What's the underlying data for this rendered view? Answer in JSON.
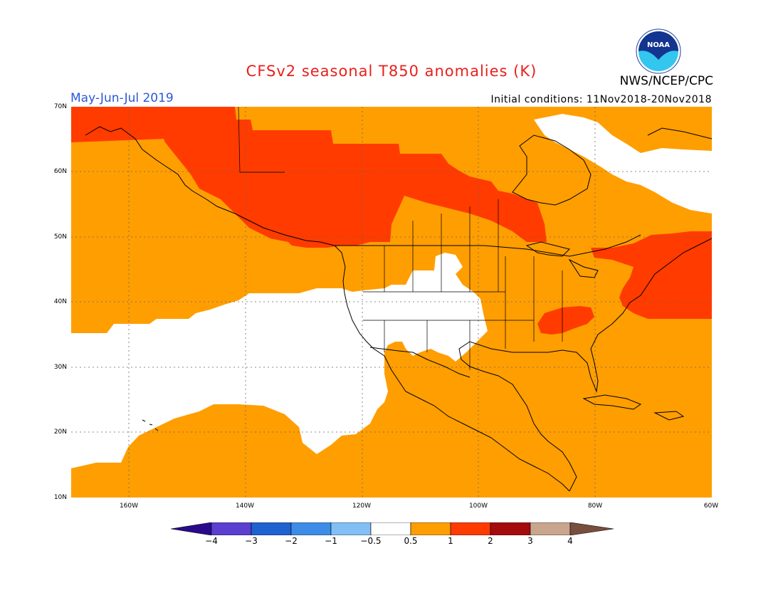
{
  "header": {
    "title": "CFSv2 seasonal T850 anomalies (K)",
    "agency": "NWS/NCEP/CPC",
    "period": "May-Jun-Jul 2019",
    "initial_conditions": "Initial conditions: 11Nov2018-20Nov2018",
    "logo_text": "NOAA"
  },
  "map": {
    "lat_labels": [
      "70N",
      "60N",
      "50N",
      "40N",
      "30N",
      "20N",
      "10N"
    ],
    "lon_labels": [
      "160W",
      "140W",
      "120W",
      "100W",
      "80W",
      "60W"
    ],
    "colors": {
      "ocean_land_default": "#ff9e00",
      "warm_strong": "#ff3b00",
      "near_normal": "#ffffff",
      "coastline": "#000000",
      "gridline": "#666666"
    }
  },
  "colorbar": {
    "labels": [
      "−4",
      "−3",
      "−2",
      "−1",
      "−0.5",
      "0.5",
      "1",
      "2",
      "3",
      "4"
    ],
    "colors": [
      "#2a0a8c",
      "#5a3fd0",
      "#1e62d0",
      "#3d8de8",
      "#82bff5",
      "#ffffff",
      "#ff9e00",
      "#ff3b00",
      "#a50b0b",
      "#c9a58e",
      "#7a4e3e"
    ]
  }
}
